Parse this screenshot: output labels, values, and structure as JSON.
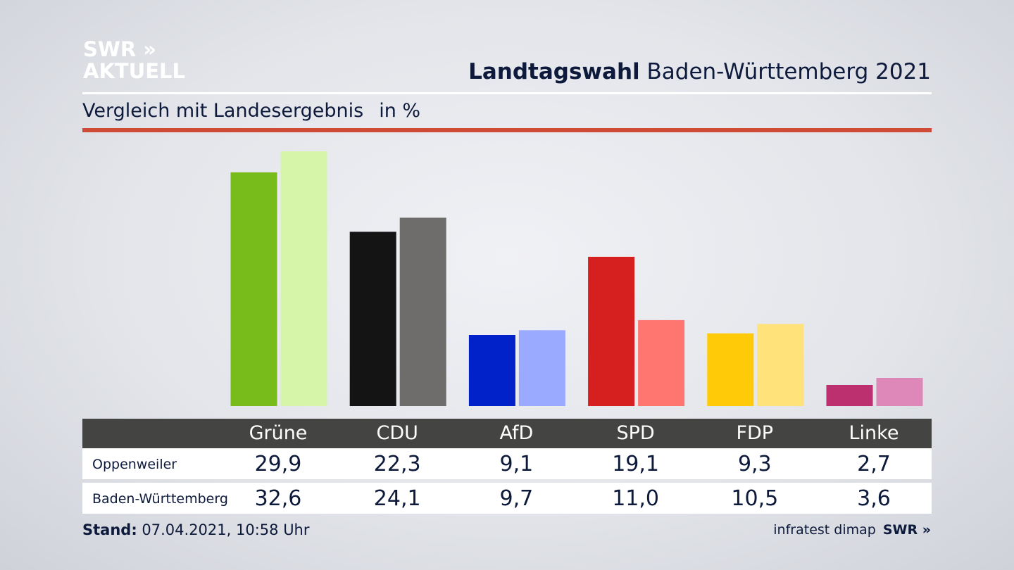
{
  "logo": {
    "line1": "SWR »",
    "line2": "AKTUELL"
  },
  "header": {
    "title_bold": "Landtagswahl",
    "title_rest": "Baden-Württemberg 2021",
    "subtitle": "Vergleich mit Landesergebnis",
    "unit": "in %"
  },
  "chart_data": {
    "type": "bar",
    "categories": [
      "Grüne",
      "CDU",
      "AfD",
      "SPD",
      "FDP",
      "Linke"
    ],
    "series": [
      {
        "name": "Oppenweiler",
        "values": [
          29.9,
          22.3,
          9.1,
          19.1,
          9.3,
          2.7
        ],
        "display": [
          "29,9",
          "22,3",
          "9,1",
          "19,1",
          "9,3",
          "2,7"
        ],
        "colors": [
          "#78bc1c",
          "#141414",
          "#0022c8",
          "#d61f1f",
          "#ffca08",
          "#bc3070"
        ]
      },
      {
        "name": "Baden-Württemberg",
        "values": [
          32.6,
          24.1,
          9.7,
          11.0,
          10.5,
          3.6
        ],
        "display": [
          "32,6",
          "24,1",
          "9,7",
          "11,0",
          "10,5",
          "3,6"
        ],
        "colors": [
          "#d6f5a9",
          "#6f6d6b",
          "#9aaaff",
          "#ff7570",
          "#ffe27a",
          "#dd88b8"
        ]
      }
    ],
    "ylim": [
      0,
      32.6
    ]
  },
  "footer": {
    "stand_label": "Stand:",
    "stand_value": "07.04.2021, 10:58 Uhr",
    "source": "infratest dimap",
    "source_logo": "SWR »"
  }
}
